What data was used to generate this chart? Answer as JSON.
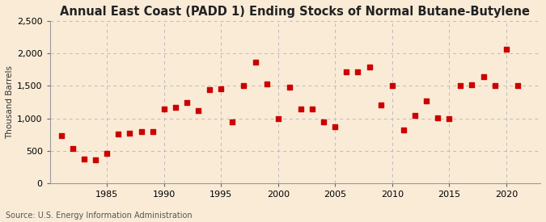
{
  "title": "Annual East Coast (PADD 1) Ending Stocks of Normal Butane-Butylene",
  "ylabel": "Thousand Barrels",
  "source": "Source: U.S. Energy Information Administration",
  "background_color": "#faebd7",
  "plot_bg_color": "#faebd7",
  "marker_color": "#cc0000",
  "years": [
    1981,
    1982,
    1983,
    1984,
    1985,
    1986,
    1987,
    1988,
    1989,
    1990,
    1991,
    1992,
    1993,
    1994,
    1995,
    1996,
    1997,
    1998,
    1999,
    2000,
    2001,
    2002,
    2003,
    2004,
    2005,
    2006,
    2007,
    2008,
    2009,
    2010,
    2011,
    2012,
    2013,
    2014,
    2015,
    2016,
    2017,
    2018,
    2019,
    2020,
    2021
  ],
  "values": [
    730,
    530,
    370,
    360,
    460,
    760,
    770,
    800,
    790,
    1140,
    1170,
    1240,
    1120,
    1440,
    1450,
    950,
    1500,
    1860,
    1530,
    1000,
    1480,
    1150,
    1140,
    940,
    870,
    1710,
    1710,
    1790,
    1210,
    1500,
    820,
    1050,
    1270,
    1010,
    990,
    1500,
    1520,
    1640,
    1500,
    2060,
    1510
  ],
  "xlim": [
    1980,
    2023
  ],
  "ylim": [
    0,
    2500
  ],
  "yticks": [
    0,
    500,
    1000,
    1500,
    2000,
    2500
  ],
  "ytick_labels": [
    "0",
    "500",
    "1,000",
    "1,500",
    "2,000",
    "2,500"
  ],
  "xticks": [
    1985,
    1990,
    1995,
    2000,
    2005,
    2010,
    2015,
    2020
  ],
  "grid_color": "#bbbbbb",
  "title_fontsize": 10.5,
  "label_fontsize": 7.5,
  "tick_fontsize": 8,
  "source_fontsize": 7
}
